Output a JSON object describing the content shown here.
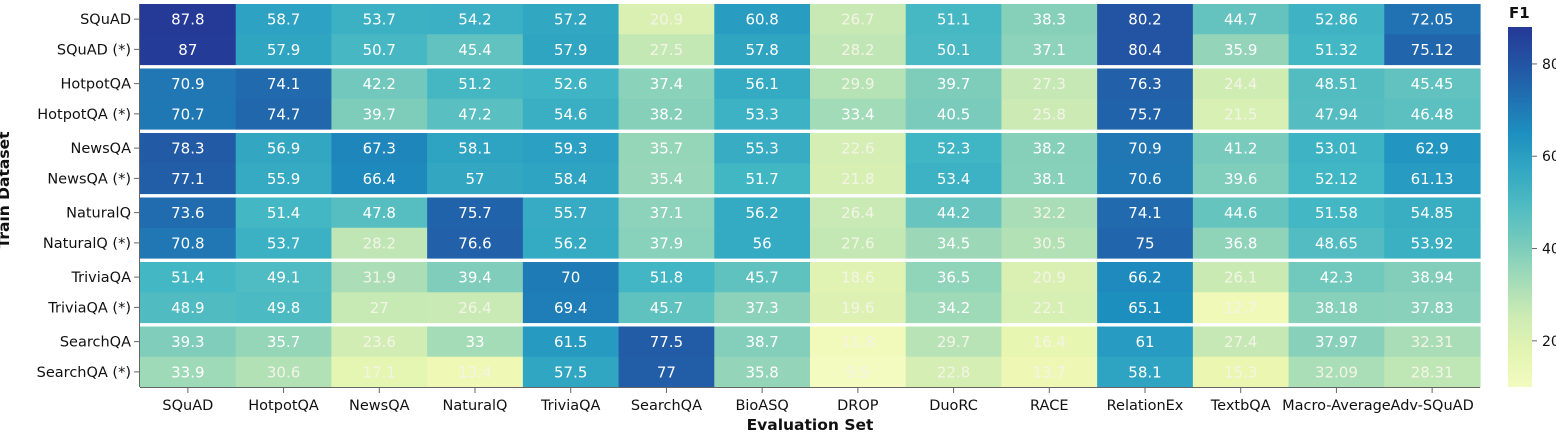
{
  "chart_data": {
    "type": "heatmap",
    "xlabel": "Evaluation Set",
    "ylabel": "Train Dataset",
    "x_categories": [
      "SQuAD",
      "HotpotQA",
      "NewsQA",
      "NaturalQ",
      "TriviaQA",
      "SearchQA",
      "BioASQ",
      "DROP",
      "DuoRC",
      "RACE",
      "RelationEx",
      "TextbQA",
      "Macro-Average",
      "Adv-SQuAD"
    ],
    "y_categories": [
      "SQuAD",
      "SQuAD (*)",
      "HotpotQA",
      "HotpotQA (*)",
      "NewsQA",
      "NewsQA (*)",
      "NaturalQ",
      "NaturalQ (*)",
      "TriviaQA",
      "TriviaQA (*)",
      "SearchQA",
      "SearchQA (*)"
    ],
    "values": [
      [
        "87.8",
        "58.7",
        "53.7",
        "54.2",
        "57.2",
        "20.9",
        "60.8",
        "26.7",
        "51.1",
        "38.3",
        "80.2",
        "44.7",
        "52.86",
        "72.05"
      ],
      [
        "87",
        "57.9",
        "50.7",
        "45.4",
        "57.9",
        "27.5",
        "57.8",
        "28.2",
        "50.1",
        "37.1",
        "80.4",
        "35.9",
        "51.32",
        "75.12"
      ],
      [
        "70.9",
        "74.1",
        "42.2",
        "51.2",
        "52.6",
        "37.4",
        "56.1",
        "29.9",
        "39.7",
        "27.3",
        "76.3",
        "24.4",
        "48.51",
        "45.45"
      ],
      [
        "70.7",
        "74.7",
        "39.7",
        "47.2",
        "54.6",
        "38.2",
        "53.3",
        "33.4",
        "40.5",
        "25.8",
        "75.7",
        "21.5",
        "47.94",
        "46.48"
      ],
      [
        "78.3",
        "56.9",
        "67.3",
        "58.1",
        "59.3",
        "35.7",
        "55.3",
        "22.6",
        "52.3",
        "38.2",
        "70.9",
        "41.2",
        "53.01",
        "62.9"
      ],
      [
        "77.1",
        "55.9",
        "66.4",
        "57",
        "58.4",
        "35.4",
        "51.7",
        "21.8",
        "53.4",
        "38.1",
        "70.6",
        "39.6",
        "52.12",
        "61.13"
      ],
      [
        "73.6",
        "51.4",
        "47.8",
        "75.7",
        "55.7",
        "37.1",
        "56.2",
        "26.4",
        "44.2",
        "32.2",
        "74.1",
        "44.6",
        "51.58",
        "54.85"
      ],
      [
        "70.8",
        "53.7",
        "28.2",
        "76.6",
        "56.2",
        "37.9",
        "56",
        "27.6",
        "34.5",
        "30.5",
        "75",
        "36.8",
        "48.65",
        "53.92"
      ],
      [
        "51.4",
        "49.1",
        "31.9",
        "39.4",
        "70",
        "51.8",
        "45.7",
        "18.6",
        "36.5",
        "20.9",
        "66.2",
        "26.1",
        "42.3",
        "38.94"
      ],
      [
        "48.9",
        "49.8",
        "27",
        "26.4",
        "69.4",
        "45.7",
        "37.3",
        "19.6",
        "34.2",
        "22.1",
        "65.1",
        "12.7",
        "38.18",
        "37.83"
      ],
      [
        "39.3",
        "35.7",
        "23.6",
        "33",
        "61.5",
        "77.5",
        "38.7",
        "11.8",
        "29.7",
        "16.4",
        "61",
        "27.4",
        "37.97",
        "32.31"
      ],
      [
        "33.9",
        "30.6",
        "17.1",
        "13.4",
        "57.5",
        "77",
        "35.8",
        "9.9",
        "22.8",
        "13.7",
        "58.1",
        "15.3",
        "32.09",
        "28.31"
      ]
    ],
    "colorbar": {
      "title": "F1",
      "ticks": [
        "20",
        "40",
        "60",
        "80"
      ],
      "range": [
        10,
        88
      ],
      "colormap": "YlGnBu"
    },
    "group_size": 2
  }
}
